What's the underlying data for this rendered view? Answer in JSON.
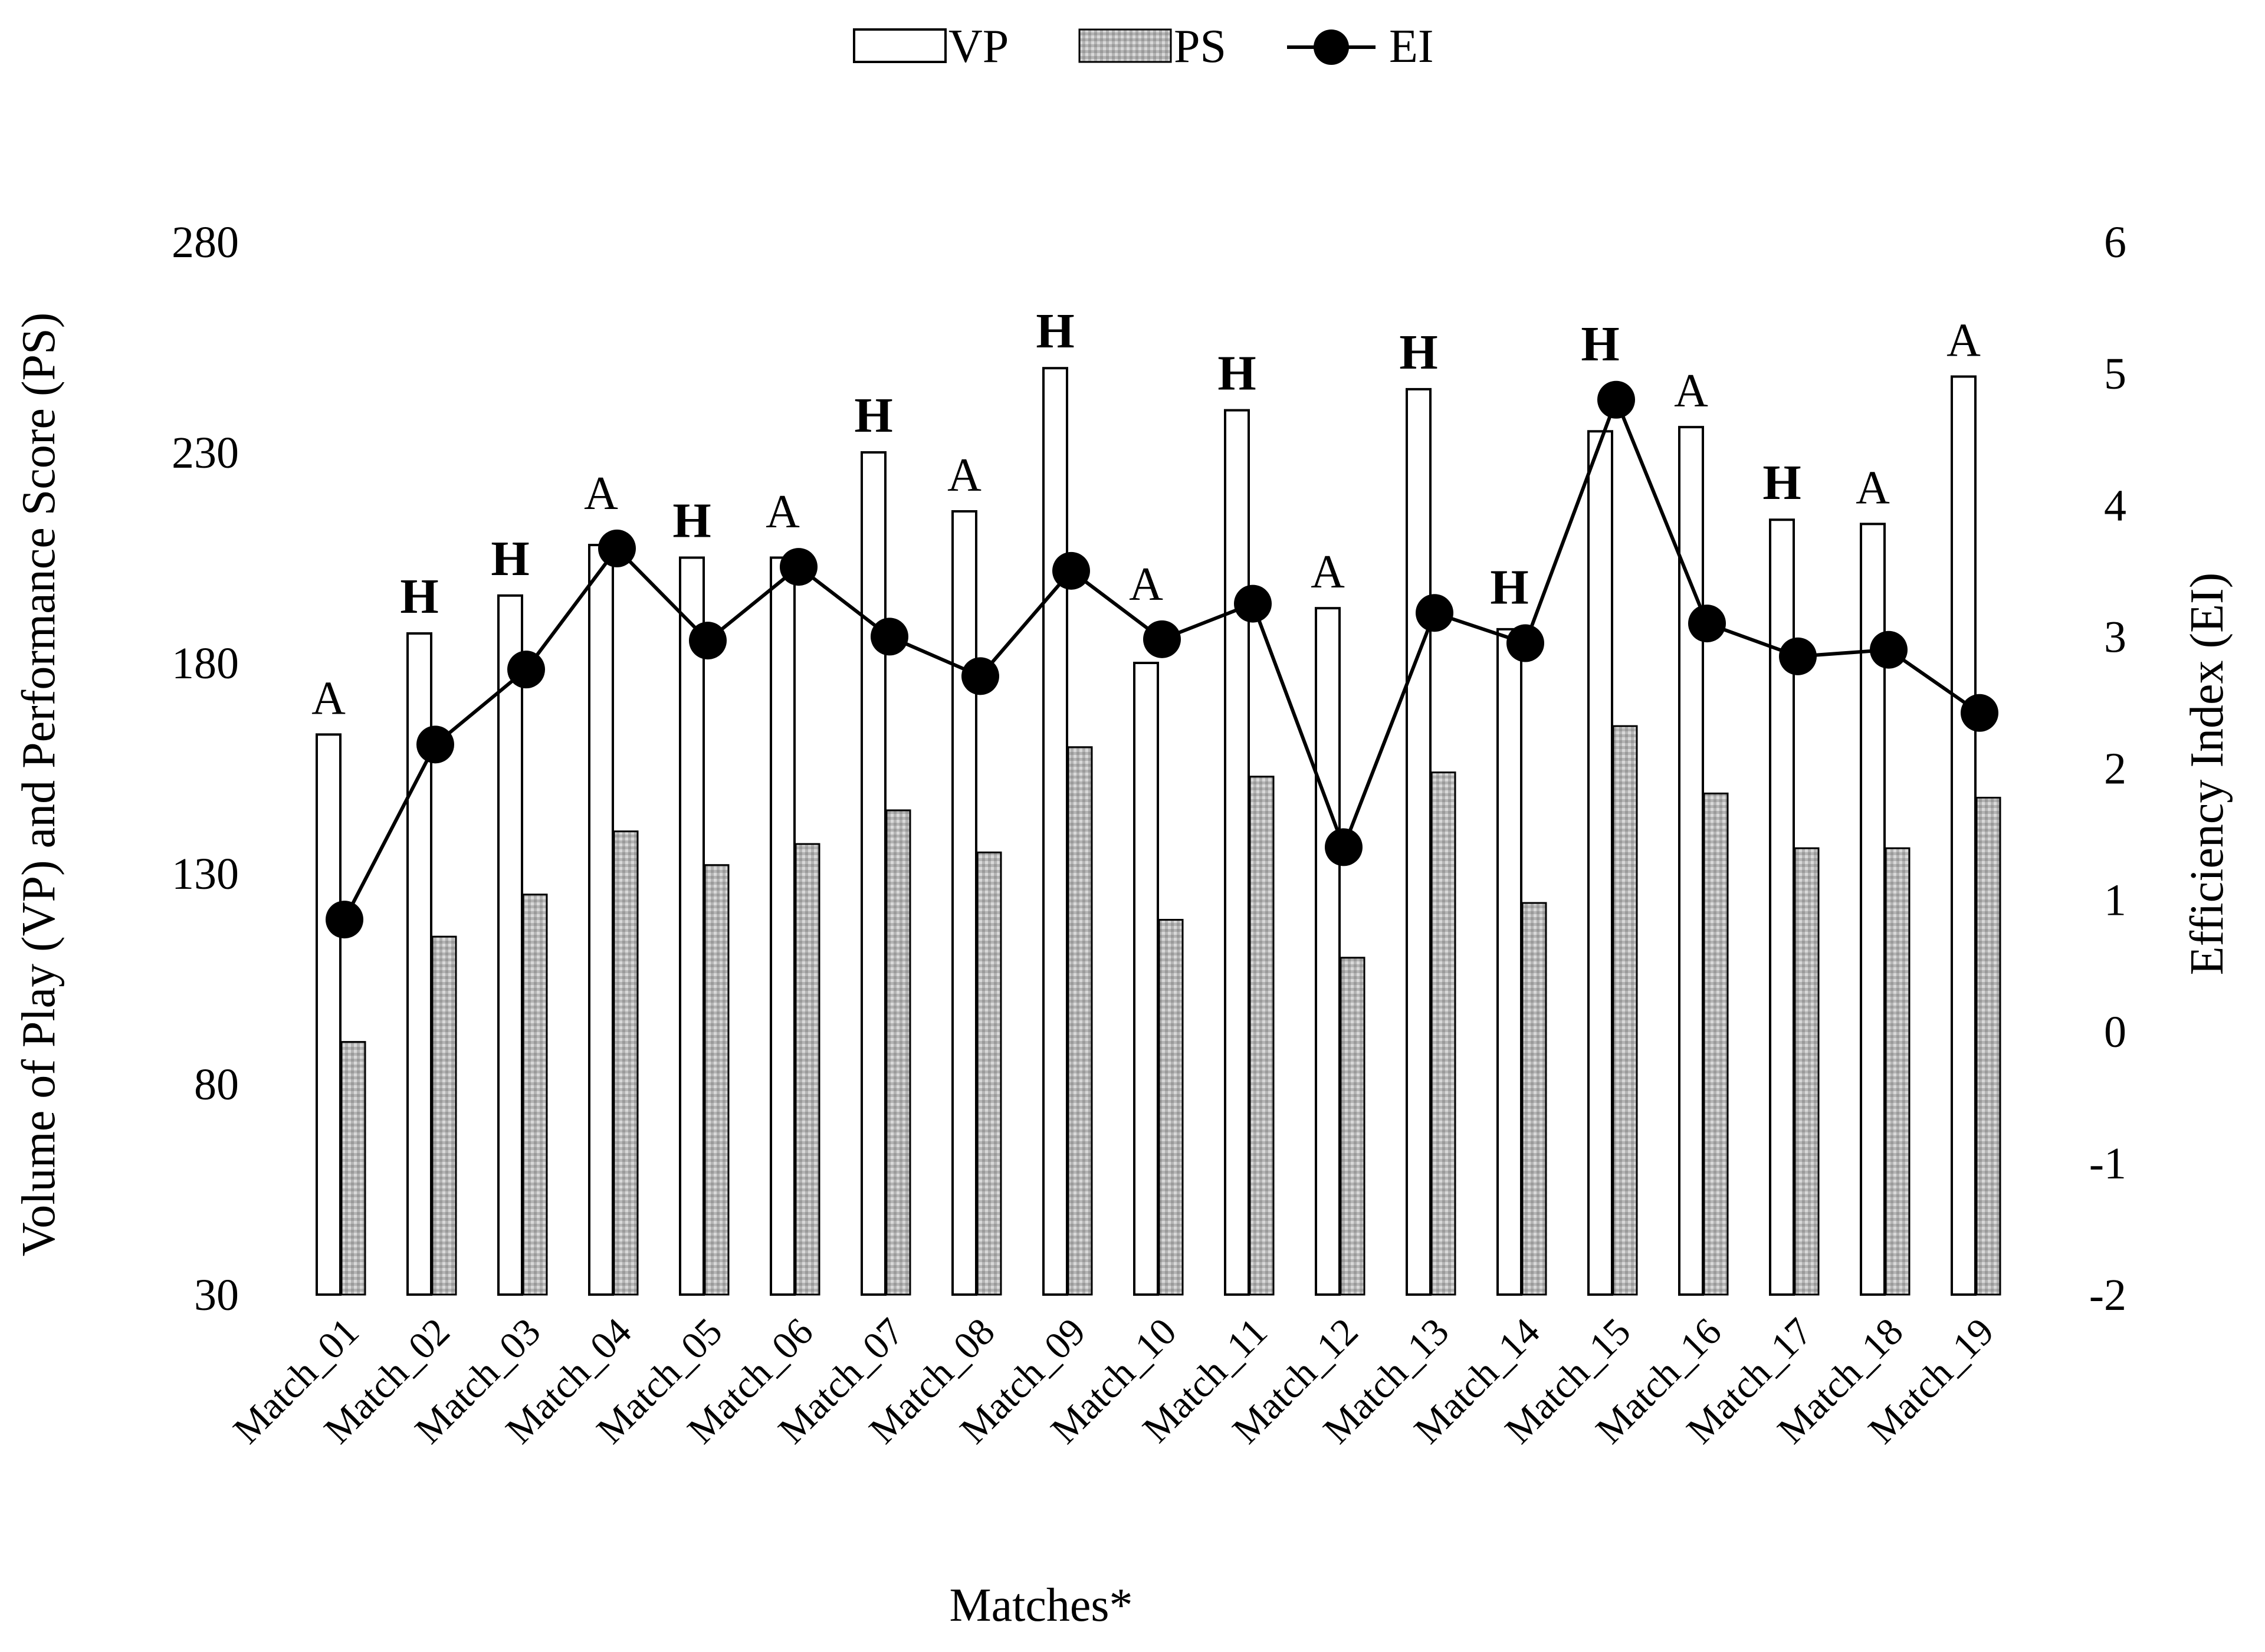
{
  "chart_data": {
    "type": "bar",
    "categories": [
      "Match_01",
      "Match_02",
      "Match_03",
      "Match_04",
      "Match_05",
      "Match_06",
      "Match_07",
      "Match_08",
      "Match_09",
      "Match_10",
      "Match_11",
      "Match_12",
      "Match_13",
      "Match_14",
      "Match_15",
      "Match_16",
      "Match_17",
      "Match_18",
      "Match_19"
    ],
    "venue": [
      "A",
      "H",
      "H",
      "A",
      "H",
      "A",
      "H",
      "A",
      "H",
      "A",
      "H",
      "A",
      "H",
      "H",
      "H",
      "A",
      "H",
      "A",
      "A"
    ],
    "series": [
      {
        "name": "VP",
        "kind": "bar",
        "axis": "left",
        "fill": "#ffffff",
        "values": [
          163,
          187,
          196,
          208,
          205,
          205,
          230,
          216,
          250,
          180,
          240,
          193,
          245,
          188,
          235,
          236,
          214,
          213,
          248
        ]
      },
      {
        "name": "PS",
        "kind": "bar",
        "axis": "left",
        "fill": "#b8b8b8",
        "values": [
          90,
          115,
          125,
          140,
          132,
          137,
          145,
          135,
          160,
          119,
          153,
          110,
          154,
          123,
          165,
          149,
          136,
          136,
          148
        ]
      },
      {
        "name": "EI",
        "kind": "line",
        "axis": "right",
        "color": "#000000",
        "values": [
          0.85,
          2.18,
          2.75,
          3.67,
          2.97,
          3.53,
          3.0,
          2.7,
          3.5,
          2.98,
          3.25,
          1.4,
          3.18,
          2.95,
          4.8,
          3.1,
          2.85,
          2.9,
          2.42
        ]
      }
    ],
    "xlabel": "Matches*",
    "ylabel": "Volume of Play (VP) and Performance Score (PS)",
    "y2label": "Efficiency Index (EI)",
    "ylim": [
      30,
      280
    ],
    "yticks": [
      30,
      80,
      130,
      180,
      230,
      280
    ],
    "y2lim": [
      -2,
      6
    ],
    "y2ticks": [
      -2,
      -1,
      0,
      1,
      2,
      3,
      4,
      5,
      6
    ],
    "legend": [
      "VP",
      "PS",
      "EI"
    ],
    "legend_position": "top-center",
    "grid": false
  }
}
